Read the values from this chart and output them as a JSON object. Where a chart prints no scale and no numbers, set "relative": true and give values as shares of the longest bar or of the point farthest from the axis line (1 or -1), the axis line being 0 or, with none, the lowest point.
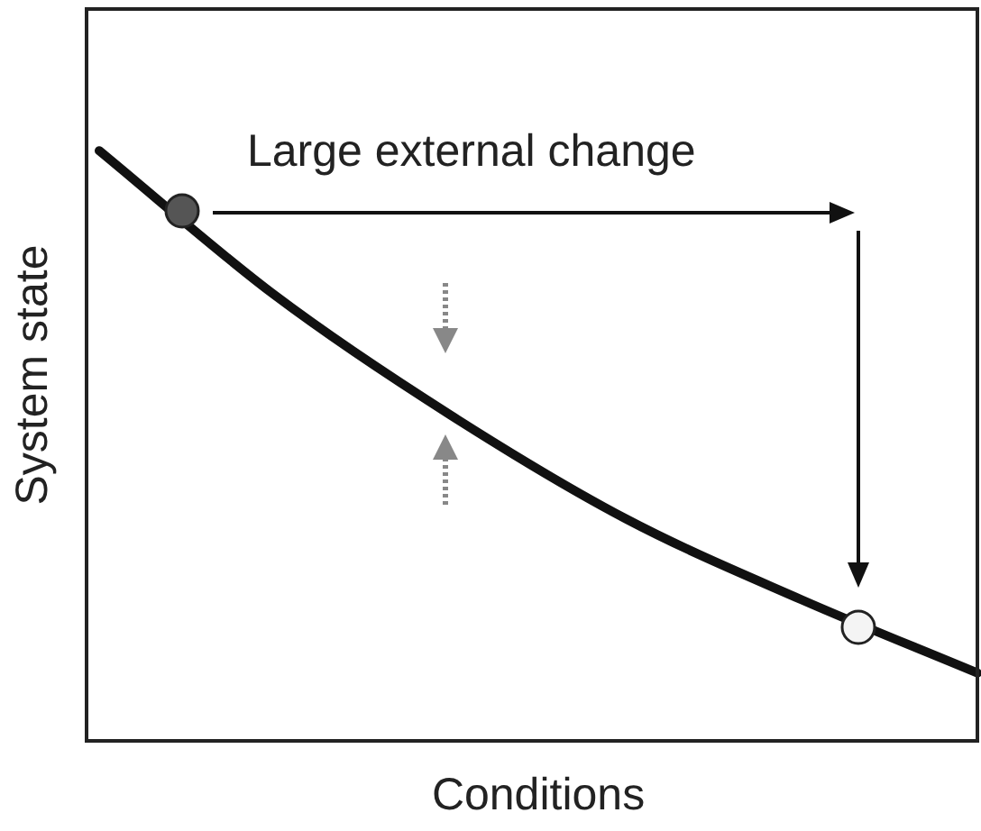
{
  "chart_data": {
    "type": "line",
    "relative": true,
    "xlabel": "Conditions",
    "ylabel": "System state",
    "annotations": [
      "Large external change"
    ],
    "categories": [
      null,
      null,
      null,
      null,
      null,
      null
    ],
    "legend": false,
    "grid": false,
    "tick_labels": false,
    "marker": "none",
    "series": [
      {
        "color": "#111111",
        "values": [
          1,
          0.755,
          0.552,
          0.376,
          0.239,
          0.115
        ]
      }
    ]
  }
}
